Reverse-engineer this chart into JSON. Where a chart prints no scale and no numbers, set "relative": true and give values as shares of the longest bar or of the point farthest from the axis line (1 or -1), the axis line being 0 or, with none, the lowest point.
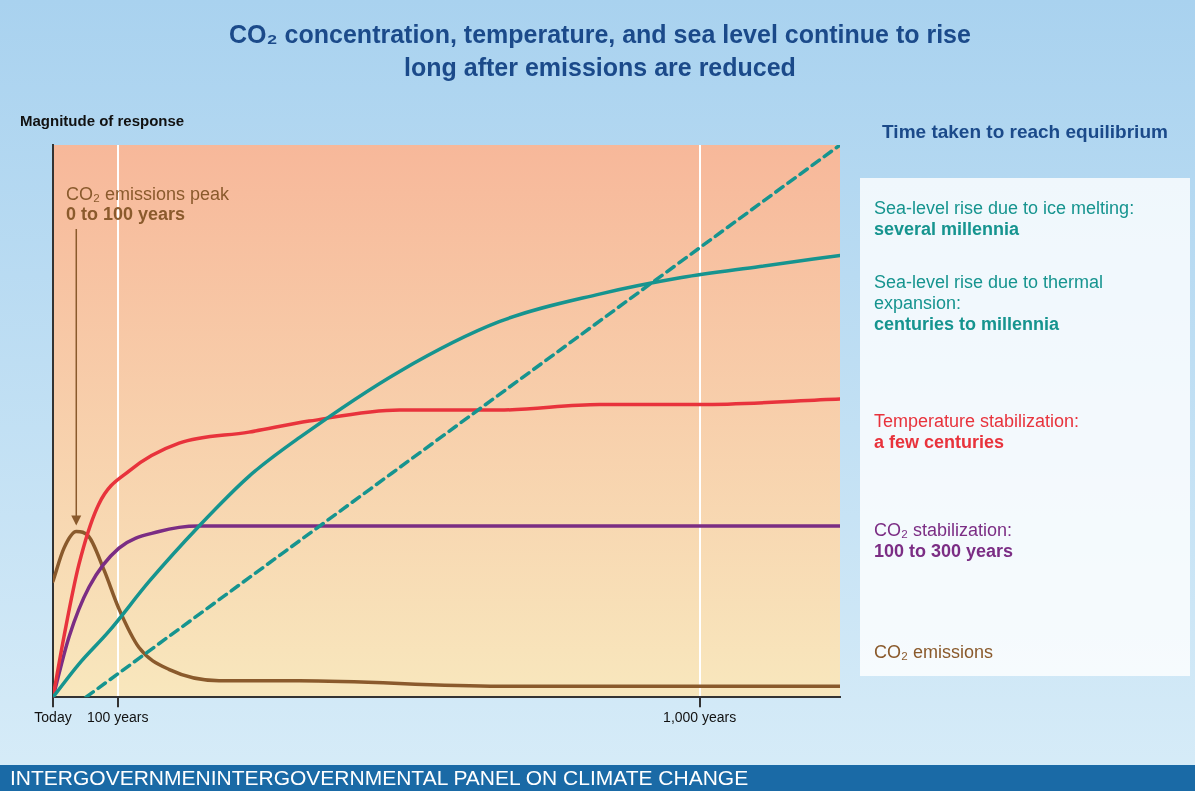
{
  "chart_data": {
    "type": "line",
    "title": "CO₂ concentration, temperature, and sea level continue to rise long after emissions are reduced",
    "ylabel": "Magnitude of response",
    "legend_title": "Time taken to reach equilibrium",
    "relative": true,
    "xlim": [
      0,
      1217
    ],
    "xticks": [
      {
        "value": 0,
        "label": "Today"
      },
      {
        "value": 100,
        "label": "100 years"
      },
      {
        "value": 1000,
        "label": "1,000 years"
      }
    ],
    "grid": "x",
    "marker": "none",
    "series": [
      {
        "name": "Sea-level rise due to ice melting:",
        "color": "#16948f",
        "line_style": "dashed",
        "x": [
          51,
          1217
        ],
        "values": [
          0,
          1
        ]
      },
      {
        "name": "Sea-level rise due to thermal expansion:",
        "color": "#16948f",
        "x": [
          0,
          40,
          87,
          149,
          226,
          303,
          381,
          536,
          690,
          845,
          972,
          1093,
          1217
        ],
        "values": [
          0,
          0.06,
          0.12,
          0.21,
          0.31,
          0.4,
          0.47,
          0.59,
          0.68,
          0.73,
          0.76,
          0.78,
          0.8
        ]
      },
      {
        "name": "Temperature stabilization:",
        "color": "#e8333c",
        "x": [
          0,
          17,
          40,
          71,
          118,
          195,
          303,
          396,
          536,
          690,
          845,
          1000,
          1217
        ],
        "values": [
          0,
          0.11,
          0.24,
          0.35,
          0.41,
          0.46,
          0.48,
          0.5,
          0.52,
          0.52,
          0.53,
          0.53,
          0.54
        ]
      },
      {
        "name": "CO₂ stabilization:",
        "color": "#7b2d84",
        "x": [
          0,
          25,
          56,
          102,
          164,
          226,
          1217
        ],
        "values": [
          0,
          0.11,
          0.2,
          0.27,
          0.3,
          0.31,
          0.31
        ]
      },
      {
        "name": "CO₂ emissions",
        "color": "#8a5a2c",
        "x": [
          0,
          17,
          36,
          56,
          79,
          102,
          133,
          180,
          257,
          381,
          690,
          1217
        ],
        "values": [
          0.21,
          0.27,
          0.3,
          0.29,
          0.23,
          0.16,
          0.09,
          0.05,
          0.03,
          0.03,
          0.02,
          0.02
        ]
      }
    ],
    "annotations": [
      "several millennia",
      "centuries to millennia",
      "a few centuries",
      "100 to 300 years",
      "CO₂ emissions peak",
      "0 to 100 years",
      "INTERGOVERNMEN",
      "INTERGOVERNMENTAL PANEL ON CLIMATE CHANGE"
    ]
  }
}
